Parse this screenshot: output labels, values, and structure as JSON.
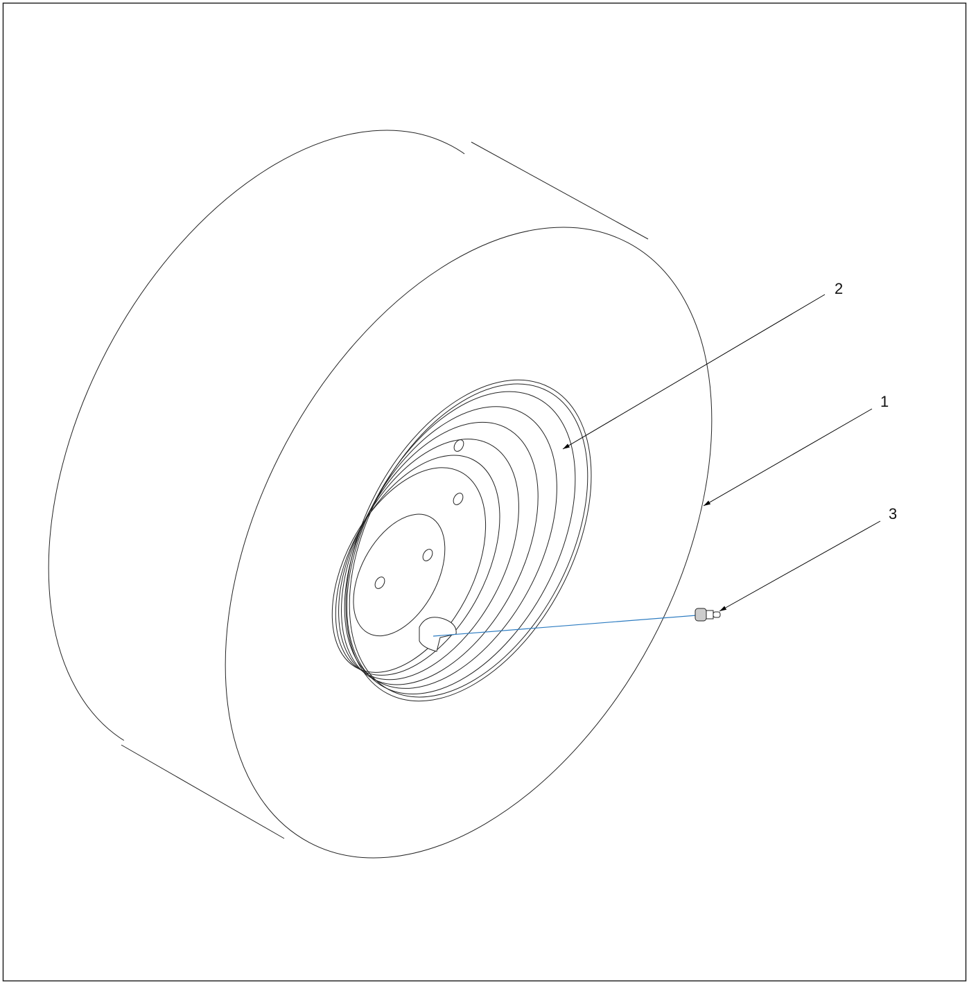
{
  "callouts": [
    {
      "label": "1"
    },
    {
      "label": "2"
    },
    {
      "label": "3"
    }
  ]
}
